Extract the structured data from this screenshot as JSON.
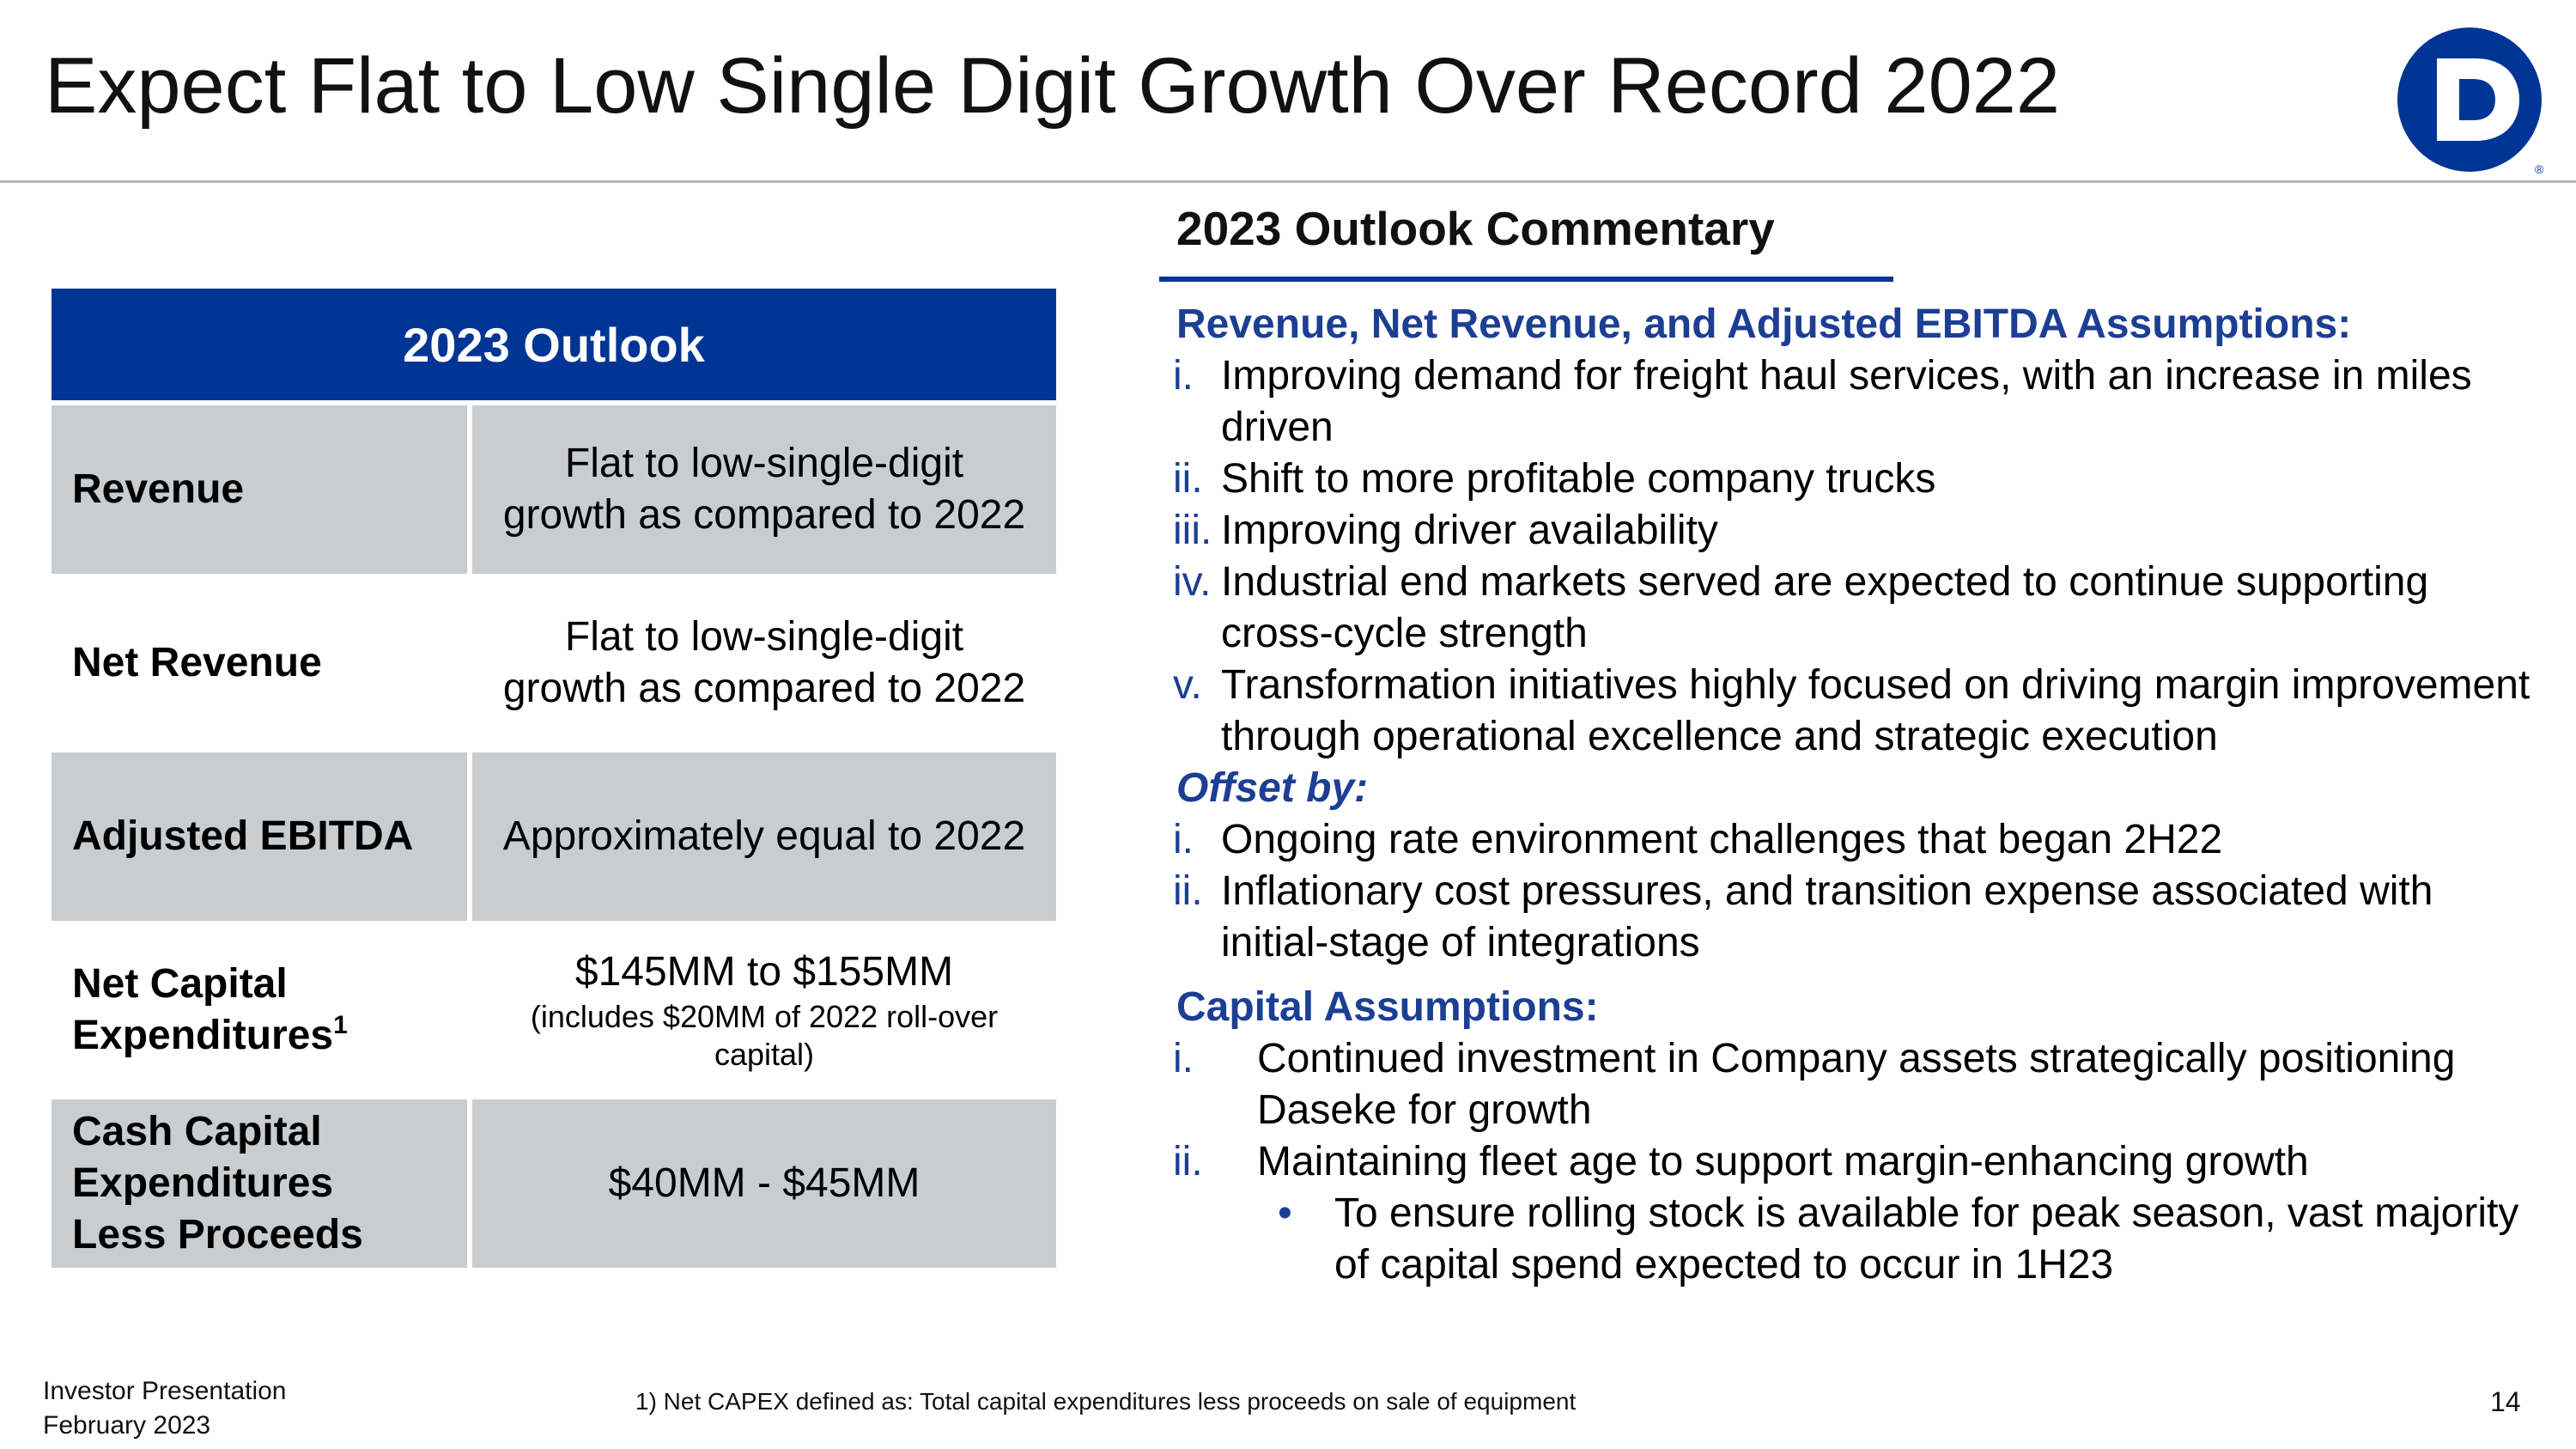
{
  "header": {
    "title": "Expect Flat to Low Single Digit Growth Over Record 2022",
    "logo_letter": "D",
    "logo_mark": "®",
    "brand_color": "#003595"
  },
  "outlook_table": {
    "heading": "2023 Outlook",
    "rows": [
      {
        "label": "Revenue",
        "value_lines": [
          "Flat to low-single-digit",
          "growth as compared to 2022"
        ]
      },
      {
        "label": "Net Revenue",
        "value_lines": [
          "Flat to low-single-digit",
          "growth as compared to 2022"
        ]
      },
      {
        "label": "Adjusted EBITDA",
        "value_lines": [
          "Approximately equal to 2022"
        ]
      },
      {
        "label_lines": [
          "Net Capital",
          "Expenditures"
        ],
        "label_sup": "1",
        "value_main": "$145MM to $155MM",
        "value_note_lines": [
          "(includes $20MM of 2022 roll-over",
          "capital)"
        ]
      },
      {
        "label_lines": [
          "Cash Capital",
          "Expenditures",
          "Less Proceeds"
        ],
        "value_lines": [
          "$40MM - $45MM"
        ]
      }
    ]
  },
  "commentary": {
    "heading": "2023 Outlook Commentary",
    "assumptions_heading": "Revenue, Net Revenue, and Adjusted EBITDA Assumptions:",
    "assumptions": [
      {
        "num": "i.",
        "text": "Improving demand for freight haul services, with an increase in miles driven"
      },
      {
        "num": "ii.",
        "text": "Shift to more profitable company trucks"
      },
      {
        "num": "iii.",
        "text": "Improving driver availability"
      },
      {
        "num": "iv.",
        "text": "Industrial end markets served are expected to continue supporting cross-cycle strength"
      },
      {
        "num": "v.",
        "text": "Transformation initiatives highly focused on driving margin improvement through operational excellence and strategic execution"
      }
    ],
    "offset_heading": "Offset by:",
    "offsets": [
      {
        "num": "i.",
        "text": "Ongoing rate environment challenges that began 2H22"
      },
      {
        "num": "ii.",
        "text": "Inflationary cost pressures, and transition expense associated with initial-stage of integrations"
      }
    ],
    "capital_heading": "Capital Assumptions:",
    "capital": [
      {
        "num": "i.",
        "text": "Continued investment in Company assets strategically positioning Daseke for growth"
      },
      {
        "num": "ii.",
        "text": "Maintaining fleet age to support margin-enhancing growth"
      }
    ],
    "capital_bullet": "To ensure rolling stock is available for peak season, vast majority of capital spend expected to occur in 1H23",
    "bullet_symbol": "•"
  },
  "footer": {
    "presentation": "Investor Presentation",
    "date": "February 2023",
    "footnote": "1) Net CAPEX defined as: Total capital expenditures less proceeds on sale of equipment",
    "page_number": "14"
  }
}
